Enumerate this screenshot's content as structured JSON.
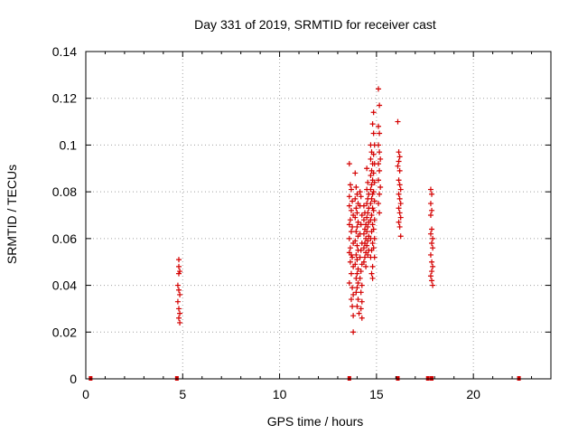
{
  "chart_data": {
    "type": "scatter",
    "title": "Day 331 of 2019, SRMTID for receiver cast",
    "xlabel": "GPS time / hours",
    "ylabel": "SRMTID / TECUs",
    "xlim": [
      0,
      24
    ],
    "ylim": [
      0,
      0.14
    ],
    "xticks": [
      0,
      5,
      10,
      15,
      20
    ],
    "xtick_labels": [
      "0",
      "5",
      "10",
      "15",
      "20"
    ],
    "yticks": [
      0,
      0.02,
      0.04,
      0.06,
      0.08,
      0.1,
      0.12,
      0.14
    ],
    "ytick_labels": [
      "0",
      "0.02",
      "0.04",
      "0.06",
      "0.08",
      "0.1",
      "0.12",
      "0.14"
    ],
    "grid": true,
    "legend": "none",
    "marker": "+",
    "color": "#d40000",
    "points": [
      [
        4.8,
        0.051
      ],
      [
        4.8,
        0.048
      ],
      [
        4.85,
        0.046
      ],
      [
        4.8,
        0.045
      ],
      [
        4.75,
        0.04
      ],
      [
        4.8,
        0.038
      ],
      [
        4.85,
        0.036
      ],
      [
        4.75,
        0.033
      ],
      [
        4.8,
        0.03
      ],
      [
        4.85,
        0.028
      ],
      [
        4.8,
        0.026
      ],
      [
        4.85,
        0.024
      ],
      [
        13.6,
        0.092
      ],
      [
        13.65,
        0.083
      ],
      [
        13.7,
        0.081
      ],
      [
        13.6,
        0.078
      ],
      [
        13.75,
        0.076
      ],
      [
        13.6,
        0.074
      ],
      [
        13.7,
        0.072
      ],
      [
        13.8,
        0.07
      ],
      [
        13.65,
        0.068
      ],
      [
        13.6,
        0.066
      ],
      [
        13.75,
        0.065
      ],
      [
        13.7,
        0.063
      ],
      [
        13.6,
        0.06
      ],
      [
        13.8,
        0.058
      ],
      [
        13.65,
        0.056
      ],
      [
        13.6,
        0.054
      ],
      [
        13.7,
        0.053
      ],
      [
        13.75,
        0.052
      ],
      [
        13.65,
        0.05
      ],
      [
        13.8,
        0.048
      ],
      [
        13.7,
        0.045
      ],
      [
        13.6,
        0.041
      ],
      [
        13.75,
        0.039
      ],
      [
        13.8,
        0.036
      ],
      [
        13.7,
        0.034
      ],
      [
        13.75,
        0.031
      ],
      [
        13.8,
        0.027
      ],
      [
        13.8,
        0.02
      ],
      [
        13.9,
        0.088
      ],
      [
        13.95,
        0.082
      ],
      [
        14.0,
        0.079
      ],
      [
        13.9,
        0.077
      ],
      [
        14.05,
        0.075
      ],
      [
        13.95,
        0.073
      ],
      [
        14.0,
        0.071
      ],
      [
        13.9,
        0.069
      ],
      [
        14.05,
        0.067
      ],
      [
        14.0,
        0.065
      ],
      [
        13.95,
        0.063
      ],
      [
        14.05,
        0.061
      ],
      [
        13.9,
        0.059
      ],
      [
        14.0,
        0.057
      ],
      [
        14.05,
        0.055
      ],
      [
        13.95,
        0.053
      ],
      [
        14.0,
        0.051
      ],
      [
        13.9,
        0.049
      ],
      [
        14.05,
        0.047
      ],
      [
        14.0,
        0.045
      ],
      [
        13.95,
        0.043
      ],
      [
        14.05,
        0.041
      ],
      [
        14.0,
        0.039
      ],
      [
        13.95,
        0.037
      ],
      [
        14.05,
        0.034
      ],
      [
        14.0,
        0.031
      ],
      [
        14.1,
        0.028
      ],
      [
        14.15,
        0.08
      ],
      [
        14.2,
        0.078
      ],
      [
        14.15,
        0.074
      ],
      [
        14.25,
        0.07
      ],
      [
        14.2,
        0.066
      ],
      [
        14.15,
        0.062
      ],
      [
        14.25,
        0.058
      ],
      [
        14.2,
        0.055
      ],
      [
        14.15,
        0.052
      ],
      [
        14.25,
        0.049
      ],
      [
        14.2,
        0.046
      ],
      [
        14.15,
        0.043
      ],
      [
        14.25,
        0.04
      ],
      [
        14.2,
        0.037
      ],
      [
        14.25,
        0.033
      ],
      [
        14.2,
        0.03
      ],
      [
        14.25,
        0.026
      ],
      [
        14.35,
        0.074
      ],
      [
        14.4,
        0.071
      ],
      [
        14.35,
        0.068
      ],
      [
        14.45,
        0.066
      ],
      [
        14.4,
        0.064
      ],
      [
        14.35,
        0.062
      ],
      [
        14.45,
        0.06
      ],
      [
        14.4,
        0.058
      ],
      [
        14.35,
        0.056
      ],
      [
        14.45,
        0.054
      ],
      [
        14.4,
        0.052
      ],
      [
        14.35,
        0.05
      ],
      [
        14.45,
        0.048
      ],
      [
        14.5,
        0.09
      ],
      [
        14.55,
        0.084
      ],
      [
        14.5,
        0.081
      ],
      [
        14.6,
        0.079
      ],
      [
        14.55,
        0.077
      ],
      [
        14.5,
        0.075
      ],
      [
        14.6,
        0.073
      ],
      [
        14.55,
        0.071
      ],
      [
        14.5,
        0.069
      ],
      [
        14.6,
        0.067
      ],
      [
        14.55,
        0.065
      ],
      [
        14.5,
        0.063
      ],
      [
        14.6,
        0.061
      ],
      [
        14.55,
        0.059
      ],
      [
        14.5,
        0.057
      ],
      [
        14.6,
        0.055
      ],
      [
        14.55,
        0.053
      ],
      [
        14.7,
        0.1
      ],
      [
        14.75,
        0.097
      ],
      [
        14.7,
        0.094
      ],
      [
        14.8,
        0.092
      ],
      [
        14.75,
        0.089
      ],
      [
        14.7,
        0.087
      ],
      [
        14.8,
        0.085
      ],
      [
        14.75,
        0.083
      ],
      [
        14.7,
        0.081
      ],
      [
        14.8,
        0.079
      ],
      [
        14.75,
        0.077
      ],
      [
        14.7,
        0.075
      ],
      [
        14.8,
        0.073
      ],
      [
        14.75,
        0.07
      ],
      [
        14.7,
        0.068
      ],
      [
        14.8,
        0.066
      ],
      [
        14.75,
        0.063
      ],
      [
        14.7,
        0.06
      ],
      [
        14.8,
        0.058
      ],
      [
        14.75,
        0.055
      ],
      [
        14.7,
        0.052
      ],
      [
        14.8,
        0.048
      ],
      [
        14.75,
        0.045
      ],
      [
        14.8,
        0.043
      ],
      [
        14.85,
        0.114
      ],
      [
        14.8,
        0.109
      ],
      [
        14.85,
        0.105
      ],
      [
        14.9,
        0.1
      ],
      [
        14.85,
        0.096
      ],
      [
        14.9,
        0.092
      ],
      [
        14.85,
        0.088
      ],
      [
        14.9,
        0.084
      ],
      [
        14.85,
        0.08
      ],
      [
        14.9,
        0.076
      ],
      [
        14.85,
        0.072
      ],
      [
        14.9,
        0.068
      ],
      [
        14.85,
        0.064
      ],
      [
        14.9,
        0.06
      ],
      [
        14.85,
        0.056
      ],
      [
        14.9,
        0.052
      ],
      [
        15.1,
        0.124
      ],
      [
        15.15,
        0.117
      ],
      [
        15.1,
        0.108
      ],
      [
        15.15,
        0.105
      ],
      [
        15.1,
        0.1
      ],
      [
        15.15,
        0.097
      ],
      [
        15.2,
        0.094
      ],
      [
        15.1,
        0.092
      ],
      [
        15.15,
        0.089
      ],
      [
        15.1,
        0.085
      ],
      [
        15.2,
        0.082
      ],
      [
        15.15,
        0.079
      ],
      [
        15.1,
        0.075
      ],
      [
        15.15,
        0.071
      ],
      [
        16.1,
        0.11
      ],
      [
        16.15,
        0.097
      ],
      [
        16.2,
        0.095
      ],
      [
        16.15,
        0.093
      ],
      [
        16.1,
        0.091
      ],
      [
        16.2,
        0.089
      ],
      [
        16.15,
        0.085
      ],
      [
        16.2,
        0.083
      ],
      [
        16.25,
        0.081
      ],
      [
        16.15,
        0.079
      ],
      [
        16.2,
        0.077
      ],
      [
        16.25,
        0.075
      ],
      [
        16.15,
        0.073
      ],
      [
        16.2,
        0.071
      ],
      [
        16.25,
        0.069
      ],
      [
        16.15,
        0.067
      ],
      [
        16.2,
        0.065
      ],
      [
        16.25,
        0.061
      ],
      [
        17.8,
        0.081
      ],
      [
        17.85,
        0.079
      ],
      [
        17.8,
        0.075
      ],
      [
        17.85,
        0.072
      ],
      [
        17.8,
        0.07
      ],
      [
        17.85,
        0.064
      ],
      [
        17.8,
        0.062
      ],
      [
        17.9,
        0.06
      ],
      [
        17.85,
        0.058
      ],
      [
        17.9,
        0.056
      ],
      [
        17.8,
        0.053
      ],
      [
        17.85,
        0.05
      ],
      [
        17.9,
        0.048
      ],
      [
        17.85,
        0.046
      ],
      [
        17.8,
        0.044
      ],
      [
        17.85,
        0.042
      ],
      [
        17.9,
        0.04
      ]
    ],
    "baseline_markers": [
      0.25,
      4.7,
      13.6,
      16.1,
      17.65,
      17.85,
      22.35
    ]
  }
}
